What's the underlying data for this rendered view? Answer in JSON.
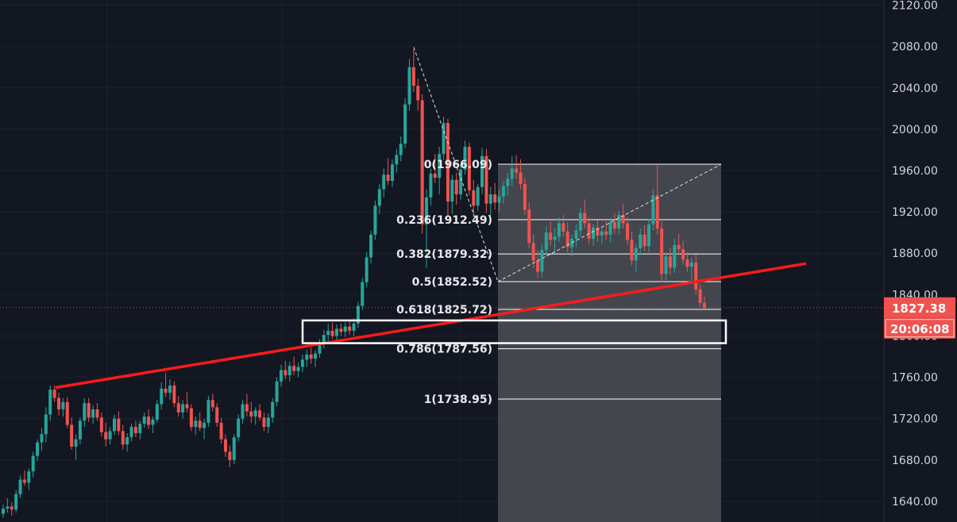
{
  "chart_data": {
    "type": "candlestick",
    "ylim": [
      1620,
      2125
    ],
    "y_ticks": [
      1640,
      1680,
      1720,
      1760,
      1800,
      1840,
      1880,
      1920,
      1960,
      2000,
      2040,
      2080,
      2120
    ],
    "y_tick_labels": [
      "1640.00",
      "1680.00",
      "1720.00",
      "1760.00",
      "1800.00",
      "1840.00",
      "1880.00",
      "1920.00",
      "1960.00",
      "2000.00",
      "2040.00",
      "2080.00",
      "2120.00"
    ],
    "grid": true,
    "current_price": 1827.38,
    "current_price_label": "1827.38",
    "countdown_label": "20:06:08",
    "colors": {
      "background": "#131722",
      "up": "#26a69a",
      "down": "#ef5350",
      "trendline": "#ff1a1a",
      "fib_zone": "#4a4b53",
      "price_badge": "#ef5350"
    },
    "fib_levels": [
      {
        "ratio": 0,
        "price": 1966.09,
        "label": "0(1966.09)"
      },
      {
        "ratio": 0.236,
        "price": 1912.49,
        "label": "0.236(1912.49)"
      },
      {
        "ratio": 0.382,
        "price": 1879.32,
        "label": "0.382(1879.32)"
      },
      {
        "ratio": 0.5,
        "price": 1852.52,
        "label": "0.5(1852.52)"
      },
      {
        "ratio": 0.618,
        "price": 1825.72,
        "label": "0.618(1825.72)"
      },
      {
        "ratio": 0.786,
        "price": 1787.56,
        "label": "0.786(1787.56)"
      },
      {
        "ratio": 1,
        "price": 1738.95,
        "label": "1(1738.95)"
      }
    ],
    "trendline": {
      "from_price": 1750,
      "to_price": 1870
    },
    "support_zone": {
      "top": 1815,
      "bottom": 1793
    },
    "candles": [
      [
        1628,
        1637,
        1624,
        1633
      ],
      [
        1633,
        1643,
        1629,
        1635
      ],
      [
        1635,
        1639,
        1626,
        1632
      ],
      [
        1632,
        1651,
        1629,
        1647
      ],
      [
        1647,
        1665,
        1643,
        1661
      ],
      [
        1661,
        1670,
        1655,
        1658
      ],
      [
        1658,
        1672,
        1651,
        1669
      ],
      [
        1669,
        1688,
        1663,
        1684
      ],
      [
        1684,
        1700,
        1679,
        1697
      ],
      [
        1697,
        1711,
        1689,
        1705
      ],
      [
        1705,
        1731,
        1697,
        1724
      ],
      [
        1724,
        1752,
        1718,
        1748
      ],
      [
        1748,
        1752,
        1736,
        1740
      ],
      [
        1740,
        1745,
        1723,
        1729
      ],
      [
        1729,
        1740,
        1722,
        1736
      ],
      [
        1736,
        1741,
        1711,
        1714
      ],
      [
        1714,
        1721,
        1690,
        1693
      ],
      [
        1693,
        1705,
        1680,
        1700
      ],
      [
        1700,
        1721,
        1695,
        1718
      ],
      [
        1718,
        1740,
        1712,
        1735
      ],
      [
        1735,
        1740,
        1717,
        1721
      ],
      [
        1721,
        1733,
        1715,
        1729
      ],
      [
        1729,
        1735,
        1718,
        1721
      ],
      [
        1721,
        1726,
        1703,
        1707
      ],
      [
        1707,
        1716,
        1693,
        1700
      ],
      [
        1700,
        1712,
        1695,
        1708
      ],
      [
        1708,
        1724,
        1704,
        1720
      ],
      [
        1720,
        1727,
        1704,
        1708
      ],
      [
        1708,
        1714,
        1690,
        1695
      ],
      [
        1695,
        1706,
        1688,
        1702
      ],
      [
        1702,
        1715,
        1698,
        1712
      ],
      [
        1712,
        1718,
        1702,
        1706
      ],
      [
        1706,
        1718,
        1700,
        1715
      ],
      [
        1715,
        1726,
        1711,
        1722
      ],
      [
        1722,
        1729,
        1710,
        1714
      ],
      [
        1714,
        1722,
        1706,
        1719
      ],
      [
        1719,
        1738,
        1716,
        1734
      ],
      [
        1734,
        1755,
        1729,
        1749
      ],
      [
        1749,
        1764,
        1741,
        1745
      ],
      [
        1745,
        1758,
        1738,
        1752
      ],
      [
        1752,
        1756,
        1731,
        1735
      ],
      [
        1735,
        1742,
        1722,
        1726
      ],
      [
        1726,
        1738,
        1720,
        1734
      ],
      [
        1734,
        1746,
        1726,
        1730
      ],
      [
        1730,
        1734,
        1708,
        1712
      ],
      [
        1712,
        1722,
        1704,
        1718
      ],
      [
        1718,
        1726,
        1708,
        1711
      ],
      [
        1711,
        1720,
        1700,
        1716
      ],
      [
        1716,
        1742,
        1712,
        1738
      ],
      [
        1738,
        1744,
        1727,
        1731
      ],
      [
        1731,
        1735,
        1712,
        1716
      ],
      [
        1716,
        1721,
        1696,
        1700
      ],
      [
        1700,
        1705,
        1683,
        1688
      ],
      [
        1688,
        1694,
        1673,
        1680
      ],
      [
        1680,
        1705,
        1676,
        1702
      ],
      [
        1702,
        1724,
        1698,
        1720
      ],
      [
        1720,
        1738,
        1715,
        1734
      ],
      [
        1734,
        1744,
        1722,
        1727
      ],
      [
        1727,
        1736,
        1716,
        1722
      ],
      [
        1722,
        1731,
        1714,
        1728
      ],
      [
        1728,
        1734,
        1718,
        1721
      ],
      [
        1721,
        1726,
        1708,
        1712
      ],
      [
        1712,
        1725,
        1706,
        1721
      ],
      [
        1721,
        1740,
        1716,
        1736
      ],
      [
        1736,
        1760,
        1732,
        1756
      ],
      [
        1756,
        1772,
        1751,
        1767
      ],
      [
        1767,
        1776,
        1758,
        1762
      ],
      [
        1762,
        1775,
        1756,
        1771
      ],
      [
        1771,
        1780,
        1762,
        1766
      ],
      [
        1766,
        1774,
        1760,
        1770
      ],
      [
        1770,
        1782,
        1765,
        1777
      ],
      [
        1777,
        1787,
        1770,
        1782
      ],
      [
        1782,
        1789,
        1773,
        1778
      ],
      [
        1778,
        1786,
        1770,
        1783
      ],
      [
        1783,
        1797,
        1779,
        1793
      ],
      [
        1793,
        1806,
        1788,
        1801
      ],
      [
        1801,
        1812,
        1795,
        1805
      ],
      [
        1805,
        1813,
        1797,
        1800
      ],
      [
        1800,
        1811,
        1796,
        1807
      ],
      [
        1807,
        1812,
        1800,
        1804
      ],
      [
        1804,
        1813,
        1799,
        1809
      ],
      [
        1809,
        1815,
        1801,
        1805
      ],
      [
        1805,
        1817,
        1800,
        1812
      ],
      [
        1812,
        1833,
        1808,
        1829
      ],
      [
        1829,
        1856,
        1825,
        1852
      ],
      [
        1852,
        1881,
        1847,
        1876
      ],
      [
        1876,
        1902,
        1870,
        1898
      ],
      [
        1898,
        1931,
        1893,
        1926
      ],
      [
        1926,
        1947,
        1918,
        1942
      ],
      [
        1942,
        1962,
        1934,
        1956
      ],
      [
        1956,
        1972,
        1946,
        1950
      ],
      [
        1950,
        1971,
        1944,
        1966
      ],
      [
        1966,
        1981,
        1958,
        1975
      ],
      [
        1975,
        1993,
        1969,
        1986
      ],
      [
        1986,
        2030,
        1982,
        2024
      ],
      [
        2024,
        2068,
        2018,
        2060
      ],
      [
        2060,
        2077,
        2036,
        2042
      ],
      [
        2042,
        2049,
        2018,
        2028
      ],
      [
        2028,
        2034,
        1899,
        1908
      ],
      [
        1908,
        1942,
        1866,
        1934
      ],
      [
        1934,
        1962,
        1926,
        1957
      ],
      [
        1957,
        1976,
        1948,
        1953
      ],
      [
        1953,
        1983,
        1937,
        1976
      ],
      [
        1976,
        2012,
        1970,
        2006
      ],
      [
        2006,
        2010,
        1915,
        1930
      ],
      [
        1930,
        1956,
        1918,
        1951
      ],
      [
        1951,
        1958,
        1927,
        1937
      ],
      [
        1937,
        1966,
        1932,
        1961
      ],
      [
        1961,
        1989,
        1956,
        1983
      ],
      [
        1983,
        1987,
        1936,
        1941
      ],
      [
        1941,
        1951,
        1915,
        1926
      ],
      [
        1926,
        1947,
        1921,
        1944
      ],
      [
        1944,
        1982,
        1937,
        1974
      ],
      [
        1974,
        1981,
        1919,
        1928
      ],
      [
        1928,
        1944,
        1916,
        1937
      ],
      [
        1937,
        1948,
        1922,
        1929
      ],
      [
        1929,
        1941,
        1920,
        1935
      ],
      [
        1935,
        1950,
        1928,
        1945
      ],
      [
        1945,
        1958,
        1936,
        1952
      ],
      [
        1952,
        1974,
        1945,
        1962
      ],
      [
        1962,
        1975,
        1952,
        1958
      ],
      [
        1958,
        1971,
        1942,
        1947
      ],
      [
        1947,
        1953,
        1917,
        1922
      ],
      [
        1922,
        1929,
        1885,
        1890
      ],
      [
        1890,
        1898,
        1866,
        1873
      ],
      [
        1873,
        1883,
        1856,
        1862
      ],
      [
        1862,
        1889,
        1857,
        1883
      ],
      [
        1883,
        1906,
        1877,
        1900
      ],
      [
        1900,
        1911,
        1887,
        1893
      ],
      [
        1893,
        1904,
        1880,
        1896
      ],
      [
        1896,
        1915,
        1891,
        1909
      ],
      [
        1909,
        1917,
        1896,
        1901
      ],
      [
        1901,
        1910,
        1881,
        1886
      ],
      [
        1886,
        1898,
        1877,
        1894
      ],
      [
        1894,
        1908,
        1886,
        1902
      ],
      [
        1902,
        1924,
        1896,
        1919
      ],
      [
        1919,
        1932,
        1904,
        1909
      ],
      [
        1909,
        1915,
        1889,
        1894
      ],
      [
        1894,
        1908,
        1887,
        1905
      ],
      [
        1905,
        1912,
        1891,
        1897
      ],
      [
        1897,
        1906,
        1889,
        1901
      ],
      [
        1901,
        1911,
        1893,
        1898
      ],
      [
        1898,
        1914,
        1890,
        1910
      ],
      [
        1910,
        1919,
        1899,
        1904
      ],
      [
        1904,
        1921,
        1898,
        1917
      ],
      [
        1917,
        1928,
        1904,
        1909
      ],
      [
        1909,
        1915,
        1888,
        1893
      ],
      [
        1893,
        1901,
        1868,
        1873
      ],
      [
        1873,
        1889,
        1862,
        1885
      ],
      [
        1885,
        1904,
        1878,
        1898
      ],
      [
        1898,
        1907,
        1882,
        1887
      ],
      [
        1887,
        1913,
        1881,
        1908
      ],
      [
        1908,
        1942,
        1902,
        1936
      ],
      [
        1936,
        1966,
        1898,
        1904
      ],
      [
        1904,
        1911,
        1852,
        1860
      ],
      [
        1860,
        1881,
        1854,
        1877
      ],
      [
        1877,
        1885,
        1859,
        1866
      ],
      [
        1866,
        1894,
        1861,
        1888
      ],
      [
        1888,
        1899,
        1879,
        1884
      ],
      [
        1884,
        1892,
        1869,
        1874
      ],
      [
        1874,
        1881,
        1862,
        1867
      ],
      [
        1867,
        1876,
        1852,
        1871
      ],
      [
        1871,
        1879,
        1840,
        1845
      ],
      [
        1845,
        1850,
        1828,
        1832
      ],
      [
        1832,
        1838,
        1826,
        1827.38
      ]
    ]
  }
}
